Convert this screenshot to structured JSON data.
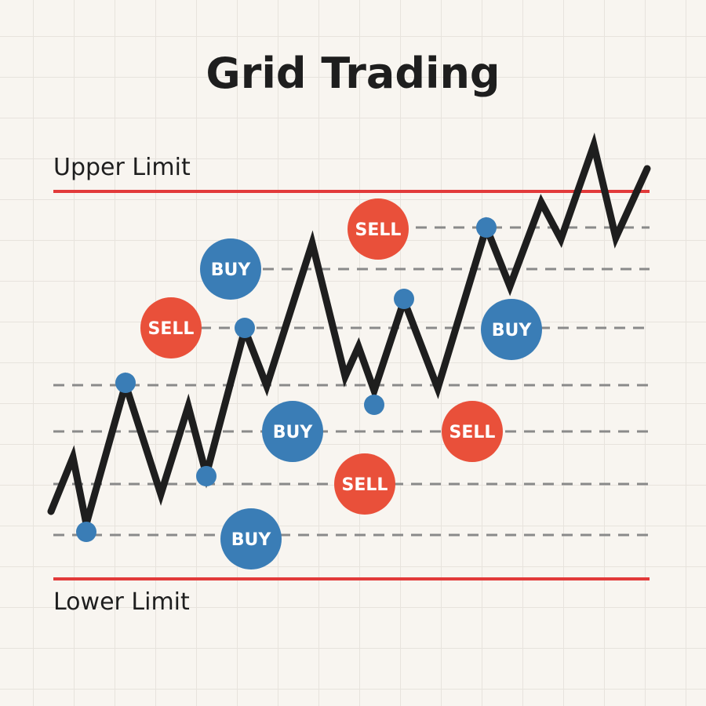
{
  "title": "Grid Trading",
  "upper_label": "Upper Limit",
  "lower_label": "Lower Limit",
  "colors": {
    "sell": "#e9503a",
    "buy": "#3a7db6",
    "limit": "#e23a3a",
    "price": "#1e1e1e",
    "grid_line": "#8a8a8a"
  },
  "orders": [
    {
      "label": "SELL",
      "type": "sell"
    },
    {
      "label": "BUY",
      "type": "buy"
    },
    {
      "label": "SELL",
      "type": "sell"
    },
    {
      "label": "BUY",
      "type": "buy"
    },
    {
      "label": "BUY",
      "type": "buy"
    },
    {
      "label": "SELL",
      "type": "sell"
    },
    {
      "label": "SELL",
      "type": "sell"
    },
    {
      "label": "BUY",
      "type": "buy"
    }
  ]
}
